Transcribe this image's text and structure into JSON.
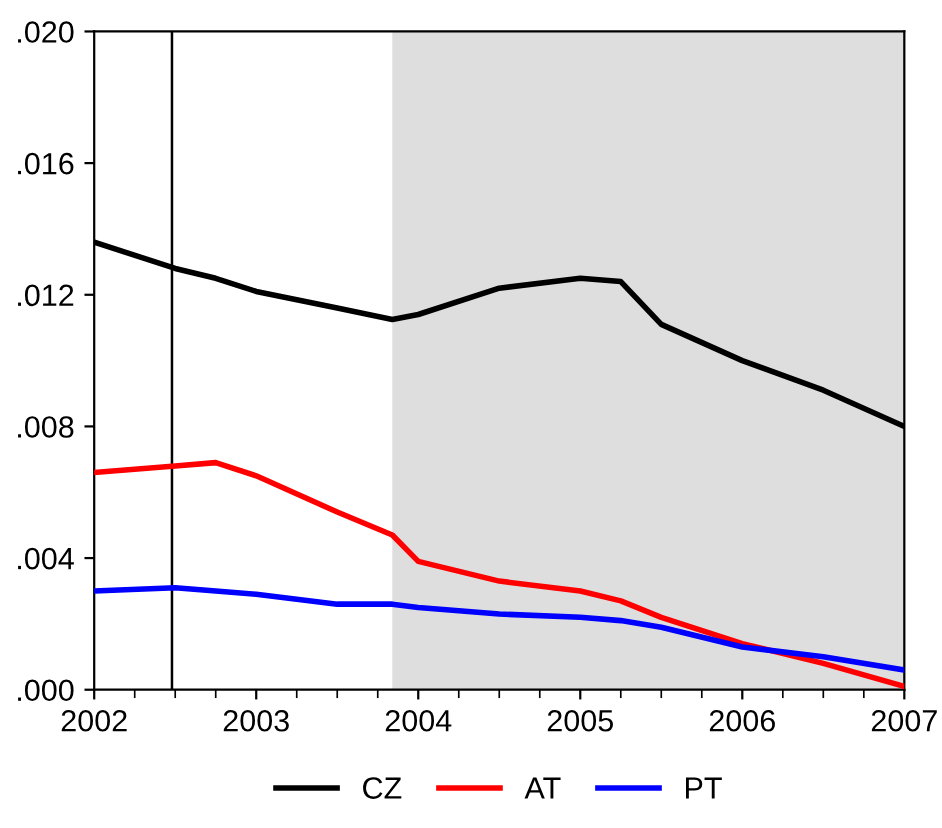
{
  "chart_data": {
    "type": "line",
    "x": [
      2002,
      2002.5,
      2002.75,
      2003,
      2003.5,
      2003.84,
      2004,
      2004.5,
      2005,
      2005.25,
      2005.5,
      2006,
      2006.5,
      2007
    ],
    "series": [
      {
        "name": "CZ",
        "color": "#000000",
        "values": [
          0.0136,
          0.0128,
          0.0125,
          0.0121,
          0.0116,
          0.01125,
          0.0114,
          0.0122,
          0.0125,
          0.0124,
          0.0111,
          0.01,
          0.0091,
          0.008
        ]
      },
      {
        "name": "AT",
        "color": "#ff0000",
        "values": [
          0.0066,
          0.0068,
          0.0069,
          0.0065,
          0.0054,
          0.0047,
          0.0039,
          0.0033,
          0.003,
          0.0027,
          0.0022,
          0.0014,
          0.0008,
          0.0001
        ]
      },
      {
        "name": "PT",
        "color": "#0000ff",
        "values": [
          0.003,
          0.0031,
          0.003,
          0.0029,
          0.0026,
          0.0026,
          0.0025,
          0.0023,
          0.0022,
          0.0021,
          0.0019,
          0.0013,
          0.001,
          0.0006
        ]
      }
    ],
    "xlim": [
      2002,
      2007
    ],
    "xticks": [
      2002,
      2003,
      2004,
      2005,
      2006,
      2007
    ],
    "ylim": [
      0,
      0.02
    ],
    "yticks": [
      {
        "value": 0,
        "label": ".000"
      },
      {
        "value": 0.004,
        "label": ".004"
      },
      {
        "value": 0.008,
        "label": ".008"
      },
      {
        "value": 0.012,
        "label": ".012"
      },
      {
        "value": 0.016,
        "label": ".016"
      },
      {
        "value": 0.02,
        "label": ".020"
      }
    ],
    "bands": [
      {
        "axis": "x",
        "from": 2003.84,
        "to": 2007,
        "color": "#dedede"
      }
    ],
    "ref_lines": [
      {
        "axis": "x",
        "value": 2002.48,
        "color": "#000000"
      }
    ],
    "grid": false,
    "legend": "bottom",
    "line_style": "solid",
    "marker": "none"
  }
}
